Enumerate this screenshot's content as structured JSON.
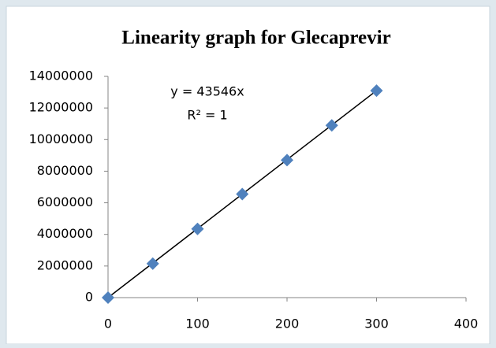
{
  "chart_data": {
    "type": "scatter",
    "title": "Linearity graph for Glecaprevir",
    "annotations": [
      "y = 43546x",
      "R² = 1"
    ],
    "series": [
      {
        "color": "#4f81bd",
        "x": [
          0,
          50,
          100,
          150,
          200,
          250,
          300
        ],
        "values": [
          0,
          2150000,
          4350000,
          6550000,
          8700000,
          10900000,
          13100000
        ]
      }
    ],
    "trendline_color": "#000000",
    "xlim": [
      0,
      400
    ],
    "xticks": [
      0,
      100,
      200,
      300,
      400
    ],
    "ylim": [
      0,
      14000000
    ],
    "yticks": [
      0,
      2000000,
      4000000,
      6000000,
      8000000,
      10000000,
      12000000,
      14000000
    ],
    "grid": false
  }
}
